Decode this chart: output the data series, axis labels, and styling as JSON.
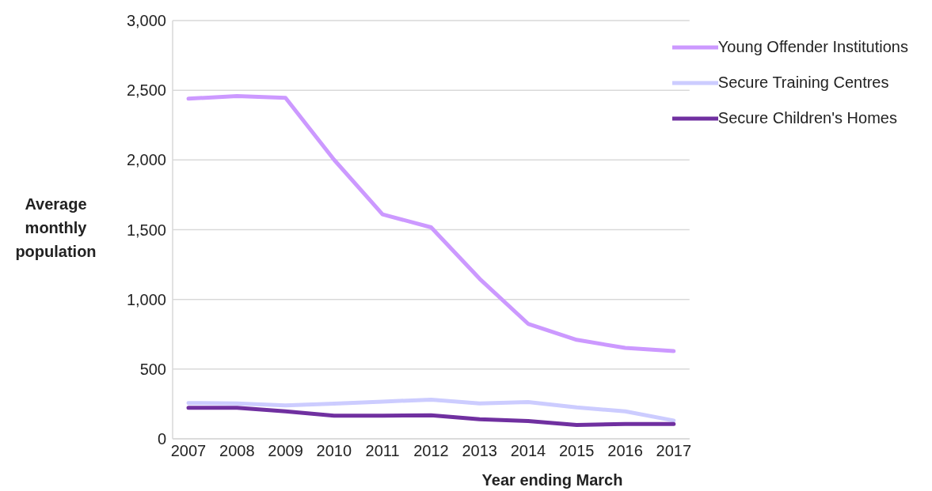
{
  "chart_data": {
    "type": "line",
    "xlabel": "Year ending March",
    "ylabel": "Average monthly population",
    "categories": [
      "2007",
      "2008",
      "2009",
      "2010",
      "2011",
      "2012",
      "2013",
      "2014",
      "2015",
      "2016",
      "2017"
    ],
    "series": [
      {
        "name": "Young Offender Institutions",
        "color": "#cc99ff",
        "values": [
          2440,
          2458,
          2446,
          2002,
          1610,
          1517,
          1148,
          825,
          710,
          652,
          629
        ]
      },
      {
        "name": "Secure Training Centres",
        "color": "#ccccff",
        "values": [
          257,
          254,
          239,
          252,
          267,
          281,
          254,
          264,
          225,
          197,
          131
        ]
      },
      {
        "name": "Secure Children's Homes",
        "color": "#7030a0",
        "values": [
          222,
          222,
          197,
          166,
          166,
          169,
          141,
          128,
          99,
          106,
          106
        ]
      }
    ],
    "ylim": [
      0,
      3000
    ],
    "yticks": [
      {
        "value": 0,
        "label": "0"
      },
      {
        "value": 500,
        "label": "500"
      },
      {
        "value": 1000,
        "label": "1,000"
      },
      {
        "value": 1500,
        "label": "1,500"
      },
      {
        "value": 2000,
        "label": "2,000"
      },
      {
        "value": 2500,
        "label": "2,500"
      },
      {
        "value": 3000,
        "label": "3,000"
      }
    ],
    "grid": "y",
    "legend": "top right",
    "marker": "none",
    "line_style": "solid"
  }
}
